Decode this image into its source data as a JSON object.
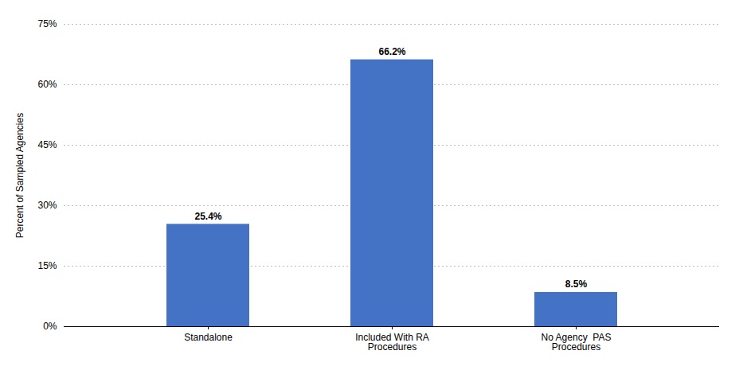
{
  "chart_data": {
    "type": "bar",
    "categories": [
      "Standalone",
      "Included With RA\nProcedures",
      "No Agency  PAS\nProcedures"
    ],
    "values": [
      25.4,
      66.2,
      8.5
    ],
    "value_labels": [
      "25.4%",
      "66.2%",
      "8.5%"
    ],
    "data_labels": true,
    "color": "#4472C4",
    "ylabel": "Percent of Sampled Agencies",
    "ylim": [
      0,
      75
    ],
    "yticks": [
      {
        "value": 0,
        "label": "0%"
      },
      {
        "value": 15,
        "label": "15%"
      },
      {
        "value": 30,
        "label": "30%"
      },
      {
        "value": 45,
        "label": "45%"
      },
      {
        "value": 60,
        "label": "60%"
      },
      {
        "value": 75,
        "label": "75%"
      }
    ],
    "grid": true
  }
}
